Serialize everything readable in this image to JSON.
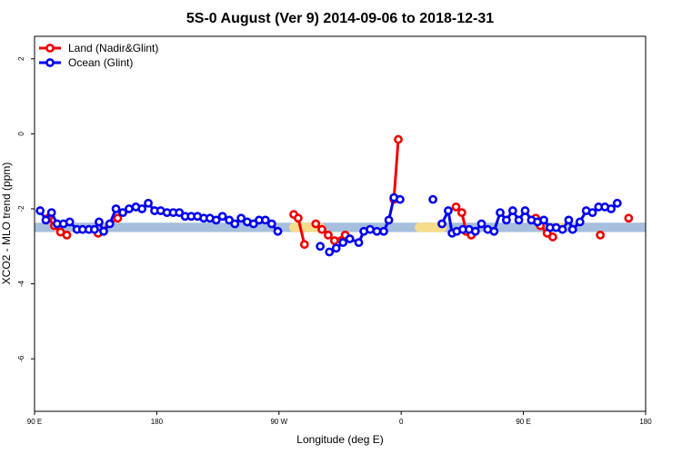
{
  "chart_data": {
    "type": "line",
    "title": "5S-0 August (Ver 9)   2014-09-06 to 2018-12-31",
    "xlabel": "Longitude (deg E)",
    "ylabel": "XCO2 - MLO trend (ppm)",
    "xlim": [
      90,
      450
    ],
    "ylim": [
      -7.4,
      2.6
    ],
    "x_ticks": [
      {
        "value": 90,
        "label": "90 E"
      },
      {
        "value": 162,
        "label": "180"
      },
      {
        "value": 234,
        "label": "90 W"
      },
      {
        "value": 306,
        "label": "0"
      },
      {
        "value": 378,
        "label": "90 E"
      },
      {
        "value": 450,
        "label": "180"
      }
    ],
    "y_ticks": [
      {
        "value": 2,
        "label": "2"
      },
      {
        "value": 0,
        "label": "0"
      },
      {
        "value": -2,
        "label": "-2"
      },
      {
        "value": -4,
        "label": "-4"
      },
      {
        "value": -6,
        "label": "-6"
      }
    ],
    "bands": [
      {
        "name": "ocean-band",
        "y0": -2.62,
        "y1": -2.37,
        "x0": 90,
        "x1": 450,
        "color": "#a7bfdd"
      },
      {
        "name": "land-band-1",
        "y0": -2.62,
        "y1": -2.37,
        "x0": 101,
        "x1": 105,
        "color": "#f7dc8a"
      },
      {
        "name": "land-band-2",
        "y0": -2.62,
        "y1": -2.37,
        "x0": 240,
        "x1": 261,
        "color": "#f7dc8a"
      },
      {
        "name": "land-band-3",
        "y0": -2.62,
        "y1": -2.37,
        "x0": 314,
        "x1": 333,
        "color": "#f7dc8a"
      },
      {
        "name": "land-band-4",
        "y0": -2.62,
        "y1": -2.37,
        "x0": 395,
        "x1": 404,
        "color": "#f7dc8a"
      }
    ],
    "legend": {
      "position": "top-left"
    },
    "series": [
      {
        "name": "Land (Nadir&Glint)",
        "color": "#ee0000",
        "segments": [
          [
            [
              98.0,
              -2.25
            ],
            [
              101.7,
              -2.45
            ],
            [
              105.3,
              -2.62
            ],
            [
              109.0,
              -2.7
            ]
          ],
          [
            [
              127.4,
              -2.65
            ],
            [
              139.0,
              -2.25
            ]
          ],
          [
            [
              242.7,
              -2.15
            ],
            [
              245.3,
              -2.25
            ],
            [
              249.0,
              -2.95
            ]
          ],
          [
            [
              255.7,
              -2.4
            ],
            [
              259.3,
              -2.55
            ],
            [
              263.0,
              -2.7
            ],
            [
              266.7,
              -2.85
            ],
            [
              273.0,
              -2.7
            ]
          ],
          [
            [
              301.7,
              -1.75
            ],
            [
              304.3,
              -0.15
            ]
          ],
          [
            [
              338.3,
              -1.95
            ],
            [
              341.7,
              -2.1
            ],
            [
              344.3,
              -2.6
            ],
            [
              347.3,
              -2.7
            ]
          ],
          [
            [
              385.3,
              -2.25
            ],
            [
              388.0,
              -2.45
            ],
            [
              392.0,
              -2.65
            ],
            [
              395.3,
              -2.75
            ]
          ],
          [
            [
              423.3,
              -2.7
            ]
          ],
          [
            [
              440.0,
              -2.25
            ]
          ]
        ]
      },
      {
        "name": "Ocean (Glint)",
        "color": "#0000ee",
        "segments": [
          [
            [
              93.3,
              -2.05
            ],
            [
              96.7,
              -2.3
            ],
            [
              100.0,
              -2.1
            ],
            [
              103.3,
              -2.4
            ],
            [
              107.0,
              -2.4
            ],
            [
              110.7,
              -2.35
            ],
            [
              115.0,
              -2.55
            ],
            [
              118.3,
              -2.55
            ],
            [
              122.0,
              -2.55
            ],
            [
              125.3,
              -2.55
            ],
            [
              128.0,
              -2.35
            ],
            [
              130.7,
              -2.6
            ],
            [
              134.3,
              -2.4
            ],
            [
              138.0,
              -2.0
            ],
            [
              142.0,
              -2.1
            ],
            [
              145.7,
              -2.0
            ],
            [
              149.7,
              -1.95
            ],
            [
              153.3,
              -2.0
            ],
            [
              157.0,
              -1.85
            ],
            [
              160.7,
              -2.05
            ],
            [
              164.3,
              -2.05
            ],
            [
              168.0,
              -2.1
            ],
            [
              171.7,
              -2.1
            ],
            [
              175.3,
              -2.1
            ],
            [
              178.7,
              -2.2
            ],
            [
              182.3,
              -2.2
            ],
            [
              186.0,
              -2.2
            ],
            [
              189.7,
              -2.25
            ],
            [
              193.3,
              -2.25
            ],
            [
              197.0,
              -2.3
            ],
            [
              200.7,
              -2.2
            ],
            [
              204.7,
              -2.3
            ],
            [
              208.0,
              -2.4
            ],
            [
              211.7,
              -2.25
            ],
            [
              215.3,
              -2.35
            ],
            [
              219.0,
              -2.4
            ],
            [
              222.3,
              -2.3
            ],
            [
              226.0,
              -2.3
            ],
            [
              229.7,
              -2.4
            ],
            [
              233.3,
              -2.6
            ]
          ],
          [
            [
              258.3,
              -3.0
            ]
          ],
          [
            [
              263.7,
              -3.15
            ],
            [
              267.7,
              -3.05
            ],
            [
              271.7,
              -2.9
            ],
            [
              275.7,
              -2.8
            ],
            [
              281.0,
              -2.9
            ],
            [
              284.0,
              -2.6
            ],
            [
              287.7,
              -2.55
            ],
            [
              291.7,
              -2.6
            ],
            [
              295.7,
              -2.6
            ],
            [
              298.7,
              -2.3
            ],
            [
              301.7,
              -1.7
            ],
            [
              305.3,
              -1.75
            ]
          ],
          [
            [
              324.7,
              -1.75
            ]
          ],
          [
            [
              330.0,
              -2.4
            ],
            [
              333.7,
              -2.05
            ],
            [
              336.0,
              -2.65
            ],
            [
              338.7,
              -2.6
            ],
            [
              342.3,
              -2.55
            ],
            [
              346.0,
              -2.55
            ],
            [
              349.7,
              -2.6
            ],
            [
              353.3,
              -2.4
            ],
            [
              357.0,
              -2.55
            ],
            [
              360.7,
              -2.6
            ],
            [
              364.3,
              -2.1
            ],
            [
              368.0,
              -2.3
            ],
            [
              371.7,
              -2.05
            ],
            [
              375.3,
              -2.3
            ],
            [
              379.0,
              -2.05
            ],
            [
              382.7,
              -2.3
            ],
            [
              386.3,
              -2.35
            ],
            [
              390.0,
              -2.3
            ],
            [
              393.7,
              -2.5
            ],
            [
              397.3,
              -2.5
            ],
            [
              401.0,
              -2.55
            ],
            [
              404.7,
              -2.3
            ],
            [
              407.0,
              -2.55
            ],
            [
              411.3,
              -2.35
            ],
            [
              415.0,
              -2.05
            ],
            [
              418.7,
              -2.1
            ],
            [
              422.3,
              -1.95
            ],
            [
              426.0,
              -1.95
            ],
            [
              429.7,
              -2.0
            ],
            [
              433.3,
              -1.85
            ]
          ]
        ]
      }
    ]
  }
}
